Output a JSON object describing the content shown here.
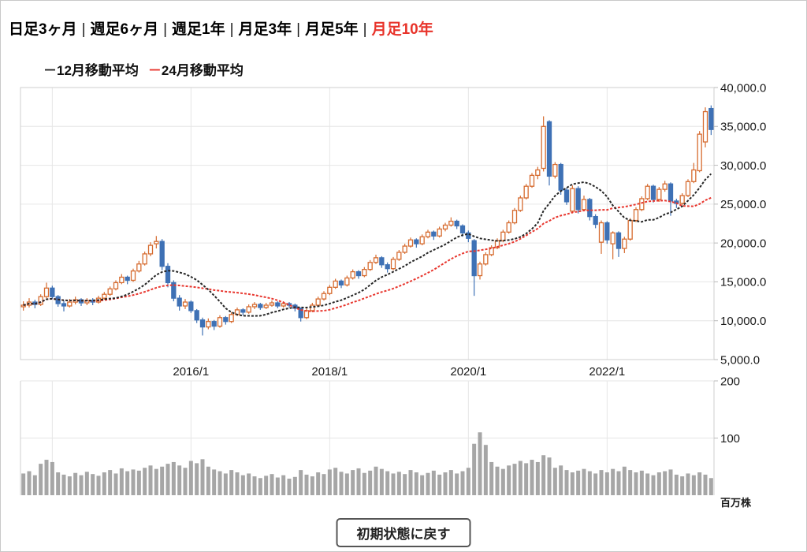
{
  "tabs": {
    "separator": "|",
    "items": [
      {
        "label": "日足3ヶ月",
        "selected": false
      },
      {
        "label": "週足6ヶ月",
        "selected": false
      },
      {
        "label": "週足1年",
        "selected": false
      },
      {
        "label": "月足3年",
        "selected": false
      },
      {
        "label": "月足5年",
        "selected": false
      },
      {
        "label": "月足10年",
        "selected": true
      }
    ],
    "selected_color": "#e8332a"
  },
  "legend": {
    "items": [
      {
        "marker": "－",
        "label": "12月移動平均",
        "color": "#262626"
      },
      {
        "marker": "－",
        "label": "24月移動平均",
        "color": "#e8362e"
      }
    ]
  },
  "reset_button": {
    "label": "初期状態に戻す"
  },
  "chart_data": {
    "type": "candlestick",
    "title": "",
    "price_axis": {
      "min": 5000,
      "max": 40000,
      "tick_interval": 5000,
      "tick_values": [
        40000,
        35000,
        30000,
        25000,
        20000,
        15000,
        10000,
        5000
      ],
      "tick_labels": [
        "40,000.0",
        "35,000.0",
        "30,000.0",
        "25,000.0",
        "20,000.0",
        "15,000.0",
        "10,000.0",
        "5,000.0"
      ]
    },
    "volume_axis": {
      "min": 0,
      "tick_values": [
        200,
        100
      ],
      "tick_labels": [
        "200",
        "100"
      ],
      "unit_label": "百万株"
    },
    "x_axis": {
      "tick_indices": [
        5,
        29,
        53,
        77,
        101
      ],
      "tick_labels": [
        "",
        "2016/1",
        "2018/1",
        "2020/1",
        "2022/1"
      ]
    },
    "colors": {
      "up": "#d66b2f",
      "down": "#3e71b5",
      "ma12": "#262626",
      "ma24": "#e8362e",
      "volume": "#a6a6a6",
      "grid": "#e6e6e6",
      "border": "#cfcfcf",
      "text": "#1a1a1a"
    },
    "series": {
      "candles": {
        "name": "monthly-ohlc",
        "ohlc": [
          [
            11800,
            12500,
            11300,
            12000
          ],
          [
            12000,
            12900,
            11700,
            12400
          ],
          [
            12400,
            12700,
            11600,
            12100
          ],
          [
            12100,
            13400,
            11900,
            13100
          ],
          [
            13100,
            14900,
            12900,
            14200
          ],
          [
            14200,
            14500,
            12800,
            13100
          ],
          [
            13100,
            13300,
            11800,
            12200
          ],
          [
            12200,
            12600,
            11200,
            11900
          ],
          [
            11900,
            12800,
            11700,
            12400
          ],
          [
            12400,
            13100,
            12100,
            12700
          ],
          [
            12700,
            12900,
            11900,
            12300
          ],
          [
            12300,
            12900,
            12000,
            12600
          ],
          [
            12600,
            12900,
            12000,
            12400
          ],
          [
            12400,
            13200,
            12200,
            12900
          ],
          [
            12900,
            13700,
            12700,
            13400
          ],
          [
            13400,
            14400,
            13200,
            14100
          ],
          [
            14100,
            15200,
            13900,
            14900
          ],
          [
            14900,
            16000,
            14700,
            15600
          ],
          [
            15600,
            15800,
            14700,
            15200
          ],
          [
            15200,
            16700,
            15000,
            16400
          ],
          [
            16400,
            17700,
            16200,
            17300
          ],
          [
            17300,
            18900,
            17100,
            18600
          ],
          [
            18600,
            20100,
            18300,
            19700
          ],
          [
            19900,
            20900,
            19300,
            20200
          ],
          [
            20200,
            20500,
            16500,
            17000
          ],
          [
            17000,
            17400,
            14300,
            14900
          ],
          [
            14900,
            15200,
            12500,
            12900
          ],
          [
            12900,
            13300,
            11300,
            11900
          ],
          [
            11900,
            12800,
            11500,
            12400
          ],
          [
            12400,
            12600,
            11000,
            11300
          ],
          [
            11300,
            11500,
            9700,
            10100
          ],
          [
            10100,
            10400,
            8100,
            9200
          ],
          [
            9200,
            10300,
            8900,
            9900
          ],
          [
            9900,
            10100,
            8800,
            9300
          ],
          [
            9300,
            10700,
            9100,
            10400
          ],
          [
            10400,
            10600,
            9500,
            9900
          ],
          [
            9900,
            11100,
            9700,
            10800
          ],
          [
            10800,
            11700,
            10600,
            11400
          ],
          [
            11400,
            11600,
            10700,
            11100
          ],
          [
            11100,
            12100,
            10900,
            11800
          ],
          [
            11800,
            12400,
            11500,
            12100
          ],
          [
            12100,
            12300,
            11400,
            11700
          ],
          [
            11700,
            12300,
            11500,
            12000
          ],
          [
            12000,
            12600,
            11800,
            12300
          ],
          [
            12300,
            12500,
            11600,
            11900
          ],
          [
            11900,
            12500,
            11700,
            12200
          ],
          [
            12200,
            12400,
            11700,
            12000
          ],
          [
            12000,
            12200,
            11200,
            11600
          ],
          [
            11600,
            11700,
            9900,
            10400
          ],
          [
            10400,
            11600,
            10200,
            11300
          ],
          [
            11300,
            12300,
            11100,
            12000
          ],
          [
            12000,
            13100,
            11800,
            12800
          ],
          [
            12800,
            13800,
            12600,
            13500
          ],
          [
            13500,
            14600,
            13300,
            14300
          ],
          [
            14300,
            15400,
            14100,
            15100
          ],
          [
            15100,
            15300,
            14200,
            14600
          ],
          [
            14600,
            15800,
            14400,
            15500
          ],
          [
            15500,
            16600,
            15300,
            16300
          ],
          [
            16300,
            16500,
            15400,
            15800
          ],
          [
            15800,
            16900,
            15600,
            16600
          ],
          [
            16600,
            17800,
            16400,
            17500
          ],
          [
            17500,
            18500,
            17300,
            18100
          ],
          [
            18100,
            18300,
            16800,
            17200
          ],
          [
            17200,
            17500,
            16200,
            16700
          ],
          [
            16700,
            18200,
            16500,
            17900
          ],
          [
            17900,
            19100,
            17700,
            18800
          ],
          [
            18800,
            19900,
            18600,
            19600
          ],
          [
            19600,
            20700,
            19400,
            20400
          ],
          [
            20400,
            20600,
            19400,
            19900
          ],
          [
            19900,
            21100,
            19700,
            20800
          ],
          [
            20800,
            21700,
            20600,
            21400
          ],
          [
            21400,
            21600,
            20400,
            20900
          ],
          [
            20900,
            22100,
            20700,
            21800
          ],
          [
            21800,
            22600,
            21500,
            22300
          ],
          [
            22300,
            23300,
            22100,
            22800
          ],
          [
            22800,
            23000,
            21800,
            22200
          ],
          [
            22200,
            22400,
            20800,
            21300
          ],
          [
            21300,
            21600,
            20100,
            20600
          ],
          [
            20300,
            20500,
            13200,
            15800
          ],
          [
            15800,
            17600,
            15300,
            17300
          ],
          [
            17300,
            18800,
            17100,
            18500
          ],
          [
            18500,
            19700,
            18300,
            19400
          ],
          [
            19400,
            20600,
            19200,
            20300
          ],
          [
            20300,
            21700,
            20100,
            21400
          ],
          [
            21400,
            22900,
            21200,
            22600
          ],
          [
            22600,
            24500,
            22400,
            24200
          ],
          [
            24200,
            26100,
            24000,
            25800
          ],
          [
            25800,
            27600,
            25600,
            27300
          ],
          [
            27300,
            29000,
            27100,
            28700
          ],
          [
            28700,
            29800,
            28200,
            29400
          ],
          [
            29600,
            36300,
            29200,
            35000
          ],
          [
            35600,
            35800,
            27400,
            28600
          ],
          [
            28600,
            30400,
            28300,
            30100
          ],
          [
            30100,
            30300,
            26200,
            26800
          ],
          [
            26800,
            27100,
            24900,
            25300
          ],
          [
            24100,
            27400,
            23800,
            27000
          ],
          [
            27000,
            27300,
            23800,
            24300
          ],
          [
            24300,
            26100,
            24100,
            25600
          ],
          [
            25600,
            25800,
            22900,
            23400
          ],
          [
            23400,
            23700,
            21900,
            22400
          ],
          [
            20100,
            22900,
            18600,
            22600
          ],
          [
            22600,
            22800,
            19900,
            20400
          ],
          [
            19900,
            21500,
            17900,
            21300
          ],
          [
            21300,
            21500,
            18200,
            19300
          ],
          [
            19300,
            20800,
            18700,
            20500
          ],
          [
            20500,
            23200,
            20300,
            22900
          ],
          [
            22900,
            24600,
            22700,
            24300
          ],
          [
            24300,
            26000,
            24100,
            25700
          ],
          [
            25700,
            27600,
            25500,
            27300
          ],
          [
            27300,
            27500,
            25200,
            25600
          ],
          [
            25600,
            27200,
            25300,
            26900
          ],
          [
            26900,
            28000,
            26600,
            27600
          ],
          [
            27600,
            27800,
            23500,
            25400
          ],
          [
            25400,
            25700,
            24500,
            25100
          ],
          [
            25100,
            26400,
            24900,
            26100
          ],
          [
            26100,
            28200,
            25900,
            27900
          ],
          [
            27900,
            30300,
            27700,
            29400
          ],
          [
            29300,
            34400,
            29100,
            34000
          ],
          [
            33000,
            37450,
            32300,
            36900
          ],
          [
            37300,
            37700,
            33900,
            34600
          ]
        ]
      },
      "ma12": {
        "name": "12月移動平均",
        "type": "sma",
        "window": 12,
        "color": "#262626"
      },
      "ma24": {
        "name": "24月移動平均",
        "type": "sma",
        "window": 24,
        "color": "#e8362e"
      },
      "volume": {
        "name": "volume",
        "values": [
          38,
          42,
          35,
          55,
          62,
          58,
          40,
          36,
          33,
          39,
          35,
          41,
          37,
          34,
          40,
          44,
          38,
          47,
          42,
          45,
          43,
          48,
          52,
          46,
          50,
          55,
          58,
          52,
          48,
          60,
          56,
          63,
          50,
          45,
          42,
          38,
          44,
          40,
          35,
          38,
          33,
          30,
          34,
          37,
          31,
          35,
          29,
          32,
          44,
          36,
          33,
          40,
          37,
          45,
          48,
          41,
          38,
          44,
          47,
          39,
          43,
          50,
          46,
          42,
          38,
          41,
          37,
          44,
          40,
          35,
          39,
          43,
          36,
          40,
          44,
          38,
          42,
          48,
          90,
          110,
          88,
          58,
          50,
          46,
          52,
          55,
          60,
          56,
          62,
          58,
          70,
          66,
          48,
          52,
          44,
          40,
          43,
          46,
          42,
          38,
          44,
          40,
          46,
          42,
          50,
          44,
          40,
          43,
          38,
          35,
          40,
          42,
          45,
          36,
          33,
          38,
          35,
          40,
          36,
          30
        ]
      }
    }
  }
}
